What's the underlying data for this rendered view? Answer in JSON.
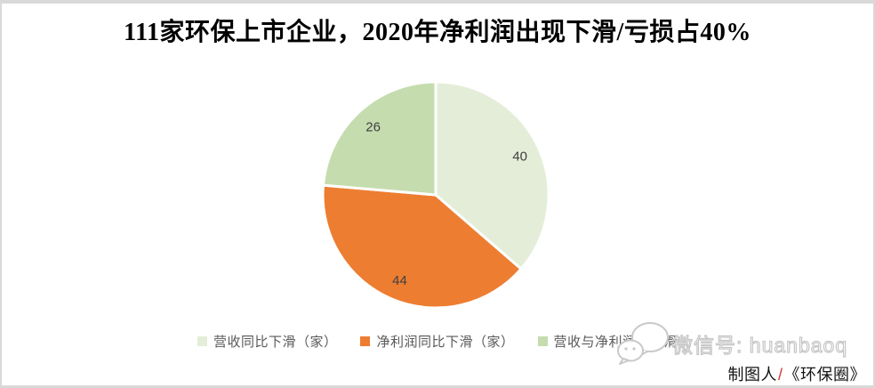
{
  "chart_data": {
    "type": "pie",
    "title": "111家环保上市企业，2020年净利润出现下滑/亏损占40%",
    "categories": [
      "营收同比下滑（家）",
      "净利润同比下滑（家）",
      "营收与净利润双下滑"
    ],
    "values": [
      40,
      44,
      26
    ],
    "colors": [
      "#e3edd8",
      "#ed7d31",
      "#c5dcae"
    ],
    "data_label_color": "#404040",
    "start_angle_deg": 0,
    "direction": "clockwise",
    "legend_position": "bottom",
    "grid": false
  },
  "watermark": {
    "text": "微信号: huanbaoq",
    "icon": "wechat-icon",
    "color": "#c6c6c6"
  },
  "credit": {
    "prefix": "制图人",
    "separator": "/",
    "suffix": "《环保圈》"
  }
}
